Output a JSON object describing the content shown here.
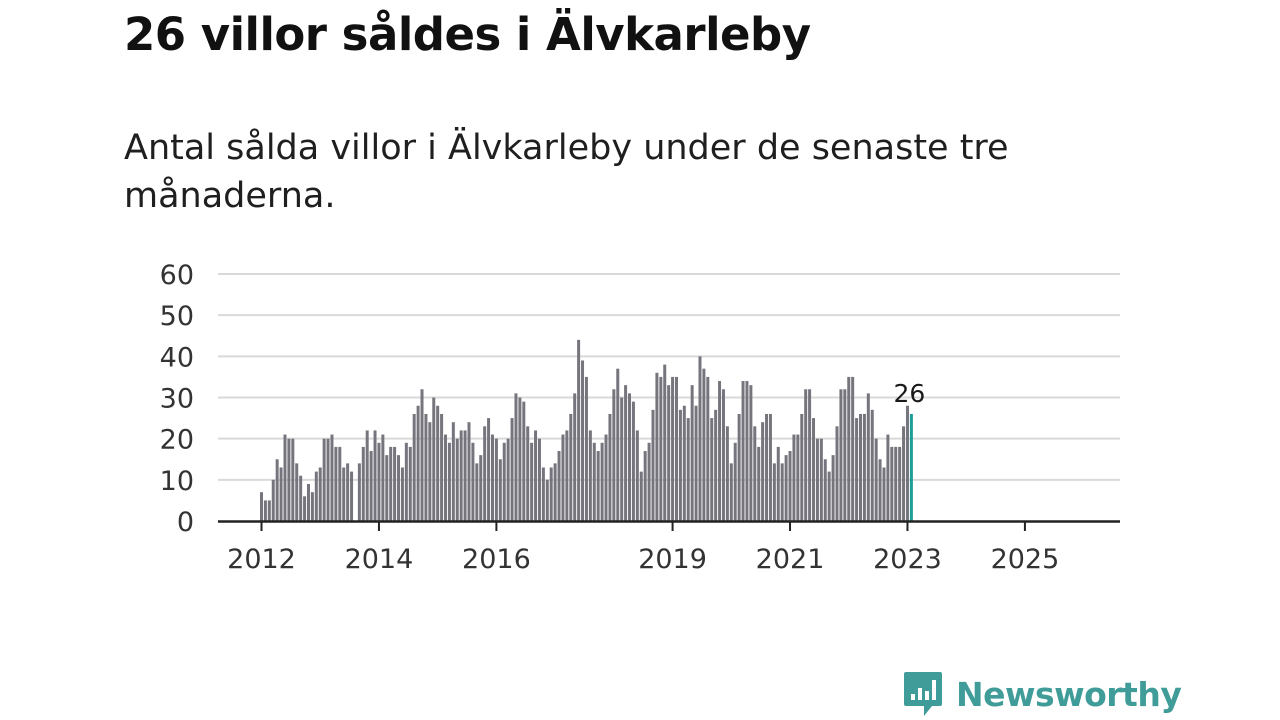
{
  "header": {
    "title": "26 villor såldes i Älvkarleby",
    "subtitle": "Antal sålda villor i Älvkarleby under de senaste tre månaderna."
  },
  "logo": {
    "text": "Newsworthy",
    "icon": "bar-chart-speech-bubble-icon"
  },
  "colors": {
    "bar": "#76757d",
    "highlight": "#1d9e98",
    "grid": "#d9d9d9",
    "axis": "#222222"
  },
  "chart_data": {
    "type": "bar",
    "title": "26 villor såldes i Älvkarleby",
    "xlabel": "",
    "ylabel": "",
    "ylim": [
      0,
      60
    ],
    "yticks": [
      0,
      10,
      20,
      30,
      40,
      50,
      60
    ],
    "xtick_labels": [
      "2012",
      "2014",
      "2016",
      "2019",
      "2021",
      "2023",
      "2025"
    ],
    "xtick_bar_index": [
      0,
      30,
      60,
      105,
      135,
      165,
      195
    ],
    "highlight_label": "26",
    "values": [
      7,
      5,
      5,
      10,
      15,
      13,
      21,
      20,
      20,
      14,
      11,
      6,
      9,
      7,
      12,
      13,
      20,
      20,
      21,
      18,
      18,
      13,
      14,
      12,
      0,
      14,
      18,
      22,
      17,
      22,
      19,
      21,
      16,
      18,
      18,
      16,
      13,
      19,
      18,
      26,
      28,
      32,
      26,
      24,
      30,
      28,
      26,
      21,
      19,
      24,
      20,
      22,
      22,
      24,
      19,
      14,
      16,
      23,
      25,
      21,
      20,
      15,
      19,
      20,
      25,
      31,
      30,
      29,
      23,
      19,
      22,
      20,
      13,
      10,
      13,
      14,
      17,
      21,
      22,
      26,
      31,
      44,
      39,
      35,
      22,
      19,
      17,
      19,
      21,
      26,
      32,
      37,
      30,
      33,
      31,
      29,
      22,
      12,
      17,
      19,
      27,
      36,
      35,
      38,
      33,
      35,
      35,
      27,
      28,
      25,
      33,
      28,
      40,
      37,
      35,
      25,
      27,
      34,
      32,
      23,
      14,
      19,
      26,
      34,
      34,
      33,
      23,
      18,
      24,
      26,
      26,
      14,
      18,
      14,
      16,
      17,
      21,
      21,
      26,
      32,
      32,
      25,
      20,
      20,
      15,
      12,
      16,
      23,
      32,
      32,
      35,
      35,
      25,
      26,
      26,
      31,
      27,
      20,
      15,
      13,
      21,
      18,
      18,
      18,
      23,
      28,
      26
    ]
  }
}
